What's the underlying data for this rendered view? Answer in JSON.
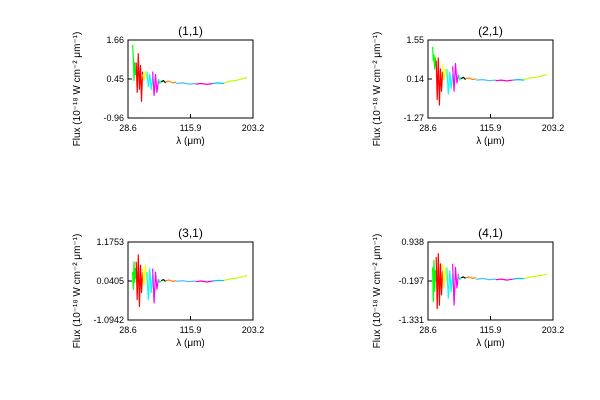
{
  "chart_data": [
    {
      "type": "line",
      "title": "(1,1)",
      "xlabel": "λ (μm)",
      "ylabel": "Flux (10⁻¹⁸ W cm⁻² μm⁻¹)",
      "xlim": [
        28.6,
        203.2
      ],
      "ylim": [
        -0.96,
        1.66
      ],
      "xticks": [
        "28.6",
        "115.9",
        "203.2"
      ],
      "yticks": [
        "-0.96",
        "0.45",
        "1.66"
      ],
      "grid": false,
      "series": [
        {
          "color": "#00ff00",
          "x": [
            35.0,
            36.0,
            37.0,
            38.0,
            39.0,
            40.0
          ],
          "values": [
            1.5,
            1.1,
            0.3,
            0.9,
            0.5,
            0.7
          ]
        },
        {
          "color": "#ff0000",
          "x": [
            40.0,
            41.5,
            43.0,
            44.5,
            46.0,
            47.5,
            49.0
          ],
          "values": [
            0.9,
            -0.1,
            1.2,
            0.0,
            0.8,
            -0.4,
            0.6
          ]
        },
        {
          "color": "#ffff00",
          "x": [
            49.0,
            51.0,
            53.0,
            55.0
          ],
          "values": [
            0.5,
            0.3,
            0.6,
            0.35
          ]
        },
        {
          "color": "#00ffff",
          "x": [
            55.0,
            57.0,
            59.0,
            61.0,
            63.0
          ],
          "values": [
            0.6,
            0.1,
            0.5,
            0.0,
            0.4
          ]
        },
        {
          "color": "#ff00ff",
          "x": [
            63.0,
            65.0,
            67.0,
            69.0,
            71.0
          ],
          "values": [
            0.6,
            -0.2,
            0.5,
            -0.1,
            0.3
          ]
        },
        {
          "color": "#00ff80",
          "x": [
            71.0,
            73.0,
            75.0
          ],
          "values": [
            0.35,
            0.2,
            0.3
          ]
        },
        {
          "color": "#000000",
          "x": [
            75.0,
            78.0,
            81.0
          ],
          "values": [
            0.25,
            0.3,
            0.22
          ]
        },
        {
          "color": "#ff8000",
          "x": [
            81.0,
            86.0,
            91.0,
            96.0
          ],
          "values": [
            0.25,
            0.28,
            0.22,
            0.25
          ]
        },
        {
          "color": "#40c0ff",
          "x": [
            96.0,
            105.0,
            114.0,
            123.0
          ],
          "values": [
            0.2,
            0.22,
            0.18,
            0.2
          ]
        },
        {
          "color": "#ff00c0",
          "x": [
            123.0,
            131.0,
            139.0,
            147.0
          ],
          "values": [
            0.18,
            0.2,
            0.17,
            0.2
          ]
        },
        {
          "color": "#00c0ff",
          "x": [
            147.0,
            155.0,
            163.0
          ],
          "values": [
            0.2,
            0.22,
            0.2
          ]
        },
        {
          "color": "#c0ff00",
          "x": [
            163.0,
            171.0,
            179.0,
            187.0,
            195.0
          ],
          "values": [
            0.22,
            0.28,
            0.3,
            0.35,
            0.4
          ]
        }
      ]
    },
    {
      "type": "line",
      "title": "(2,1)",
      "xlabel": "λ (μm)",
      "ylabel": "Flux (10⁻¹⁸ W cm⁻² μm⁻¹)",
      "xlim": [
        28.6,
        203.2
      ],
      "ylim": [
        -1.27,
        1.55
      ],
      "xticks": [
        "28.6",
        "115.9",
        "203.2"
      ],
      "yticks": [
        "-1.27",
        "0.14",
        "1.55"
      ],
      "grid": false,
      "series": [
        {
          "color": "#00ff00",
          "x": [
            35.0,
            36.0,
            37.0,
            38.0,
            39.0,
            40.0
          ],
          "values": [
            1.3,
            0.8,
            1.0,
            0.5,
            0.9,
            0.6
          ]
        },
        {
          "color": "#ff0000",
          "x": [
            40.0,
            41.5,
            43.0,
            44.5,
            46.0,
            47.5,
            49.0
          ],
          "values": [
            0.8,
            -0.6,
            0.9,
            -0.8,
            0.5,
            -0.3,
            0.4
          ]
        },
        {
          "color": "#ffff00",
          "x": [
            49.0,
            51.0,
            53.0,
            55.0
          ],
          "values": [
            0.7,
            0.1,
            0.5,
            0.2
          ]
        },
        {
          "color": "#00ffff",
          "x": [
            55.0,
            57.0,
            59.0,
            61.0,
            63.0
          ],
          "values": [
            0.5,
            -0.4,
            0.4,
            -0.2,
            0.3
          ]
        },
        {
          "color": "#ff00ff",
          "x": [
            63.0,
            65.0,
            67.0,
            69.0,
            71.0
          ],
          "values": [
            0.6,
            -0.3,
            0.7,
            0.0,
            0.3
          ]
        },
        {
          "color": "#00ff80",
          "x": [
            71.0,
            73.0,
            75.0
          ],
          "values": [
            0.3,
            0.1,
            0.2
          ]
        },
        {
          "color": "#000000",
          "x": [
            75.0,
            78.0,
            81.0
          ],
          "values": [
            0.15,
            0.2,
            0.12
          ]
        },
        {
          "color": "#ff8000",
          "x": [
            81.0,
            86.0,
            91.0,
            96.0
          ],
          "values": [
            0.15,
            0.18,
            0.12,
            0.15
          ]
        },
        {
          "color": "#40c0ff",
          "x": [
            96.0,
            105.0,
            114.0,
            123.0
          ],
          "values": [
            0.1,
            0.12,
            0.08,
            0.1
          ]
        },
        {
          "color": "#ff00c0",
          "x": [
            123.0,
            131.0,
            139.0,
            147.0
          ],
          "values": [
            0.08,
            0.1,
            0.07,
            0.1
          ]
        },
        {
          "color": "#00c0ff",
          "x": [
            147.0,
            155.0,
            163.0
          ],
          "values": [
            0.1,
            0.12,
            0.1
          ]
        },
        {
          "color": "#c0ff00",
          "x": [
            163.0,
            171.0,
            179.0,
            187.0,
            195.0
          ],
          "values": [
            0.12,
            0.18,
            0.2,
            0.25,
            0.3
          ]
        }
      ]
    },
    {
      "type": "line",
      "title": "(3,1)",
      "xlabel": "λ (μm)",
      "ylabel": "Flux (10⁻¹⁸ W cm⁻² μm⁻¹)",
      "xlim": [
        28.6,
        203.2
      ],
      "ylim": [
        -1.0942,
        1.1753
      ],
      "xticks": [
        "28.6",
        "115.9",
        "203.2"
      ],
      "yticks": [
        "-1.0942",
        "0.0405",
        "1.1753"
      ],
      "grid": false,
      "series": [
        {
          "color": "#00ff00",
          "x": [
            35.0,
            36.0,
            37.0,
            38.0,
            39.0,
            40.0
          ],
          "values": [
            0.3,
            -0.2,
            0.6,
            0.0,
            0.4,
            0.1
          ]
        },
        {
          "color": "#ff0000",
          "x": [
            40.0,
            41.5,
            43.0,
            44.5,
            46.0,
            47.5,
            49.0
          ],
          "values": [
            0.6,
            -0.5,
            0.8,
            -0.7,
            0.5,
            -0.3,
            0.3
          ]
        },
        {
          "color": "#ffff00",
          "x": [
            49.0,
            51.0,
            53.0,
            55.0
          ],
          "values": [
            0.4,
            -0.1,
            0.5,
            0.0
          ]
        },
        {
          "color": "#00ffff",
          "x": [
            55.0,
            57.0,
            59.0,
            61.0,
            63.0
          ],
          "values": [
            0.3,
            -0.5,
            0.4,
            -0.3,
            0.2
          ]
        },
        {
          "color": "#ff00ff",
          "x": [
            63.0,
            65.0,
            67.0,
            69.0,
            71.0
          ],
          "values": [
            0.4,
            -0.6,
            0.3,
            -0.2,
            0.1
          ]
        },
        {
          "color": "#00ff80",
          "x": [
            71.0,
            73.0,
            75.0
          ],
          "values": [
            0.1,
            0.0,
            0.05
          ]
        },
        {
          "color": "#000000",
          "x": [
            75.0,
            78.0,
            81.0
          ],
          "values": [
            0.05,
            0.08,
            0.03
          ]
        },
        {
          "color": "#ff8000",
          "x": [
            81.0,
            86.0,
            91.0,
            96.0
          ],
          "values": [
            0.05,
            0.07,
            0.03,
            0.05
          ]
        },
        {
          "color": "#40c0ff",
          "x": [
            96.0,
            105.0,
            114.0,
            123.0
          ],
          "values": [
            0.03,
            0.05,
            0.02,
            0.04
          ]
        },
        {
          "color": "#ff00c0",
          "x": [
            123.0,
            131.0,
            139.0,
            147.0
          ],
          "values": [
            0.02,
            0.04,
            0.01,
            0.04
          ]
        },
        {
          "color": "#00c0ff",
          "x": [
            147.0,
            155.0,
            163.0
          ],
          "values": [
            0.04,
            0.06,
            0.05
          ]
        },
        {
          "color": "#c0ff00",
          "x": [
            163.0,
            171.0,
            179.0,
            187.0,
            195.0
          ],
          "values": [
            0.06,
            0.1,
            0.12,
            0.16,
            0.2
          ]
        }
      ]
    },
    {
      "type": "line",
      "title": "(4,1)",
      "xlabel": "λ (μm)",
      "ylabel": "Flux (10⁻¹⁸ W cm⁻² μm⁻¹)",
      "xlim": [
        28.6,
        203.2
      ],
      "ylim": [
        -1.331,
        0.938
      ],
      "xticks": [
        "28.6",
        "115.9",
        "203.2"
      ],
      "yticks": [
        "-1.331",
        "-0.197",
        "0.938"
      ],
      "grid": false,
      "series": [
        {
          "color": "#00ff00",
          "x": [
            35.0,
            36.0,
            37.0,
            38.0,
            39.0,
            40.0
          ],
          "values": [
            0.2,
            -0.8,
            0.4,
            -0.5,
            0.1,
            -0.2
          ]
        },
        {
          "color": "#ff0000",
          "x": [
            40.0,
            41.5,
            43.0,
            44.5,
            46.0,
            47.5,
            49.0
          ],
          "values": [
            0.5,
            -1.0,
            0.6,
            -0.9,
            0.3,
            -0.6,
            0.1
          ]
        },
        {
          "color": "#ffff00",
          "x": [
            49.0,
            51.0,
            53.0,
            55.0
          ],
          "values": [
            0.3,
            -0.4,
            0.2,
            -0.2
          ]
        },
        {
          "color": "#00ffff",
          "x": [
            55.0,
            57.0,
            59.0,
            61.0,
            63.0
          ],
          "values": [
            0.2,
            -0.7,
            0.1,
            -0.5,
            0.0
          ]
        },
        {
          "color": "#ff00ff",
          "x": [
            63.0,
            65.0,
            67.0,
            69.0,
            71.0
          ],
          "values": [
            0.3,
            -0.9,
            0.2,
            -0.4,
            0.0
          ]
        },
        {
          "color": "#00ff80",
          "x": [
            71.0,
            73.0,
            75.0
          ],
          "values": [
            -0.05,
            -0.15,
            -0.1
          ]
        },
        {
          "color": "#000000",
          "x": [
            75.0,
            78.0,
            81.0
          ],
          "values": [
            -0.1,
            -0.08,
            -0.12
          ]
        },
        {
          "color": "#ff8000",
          "x": [
            81.0,
            86.0,
            91.0,
            96.0
          ],
          "values": [
            -0.1,
            -0.08,
            -0.12,
            -0.1
          ]
        },
        {
          "color": "#40c0ff",
          "x": [
            96.0,
            105.0,
            114.0,
            123.0
          ],
          "values": [
            -0.15,
            -0.12,
            -0.16,
            -0.14
          ]
        },
        {
          "color": "#ff00c0",
          "x": [
            123.0,
            131.0,
            139.0,
            147.0
          ],
          "values": [
            -0.16,
            -0.14,
            -0.17,
            -0.14
          ]
        },
        {
          "color": "#00c0ff",
          "x": [
            147.0,
            155.0,
            163.0
          ],
          "values": [
            -0.14,
            -0.12,
            -0.13
          ]
        },
        {
          "color": "#c0ff00",
          "x": [
            163.0,
            171.0,
            179.0,
            187.0,
            195.0
          ],
          "values": [
            -0.12,
            -0.08,
            -0.06,
            -0.03,
            0.0
          ]
        }
      ]
    }
  ]
}
